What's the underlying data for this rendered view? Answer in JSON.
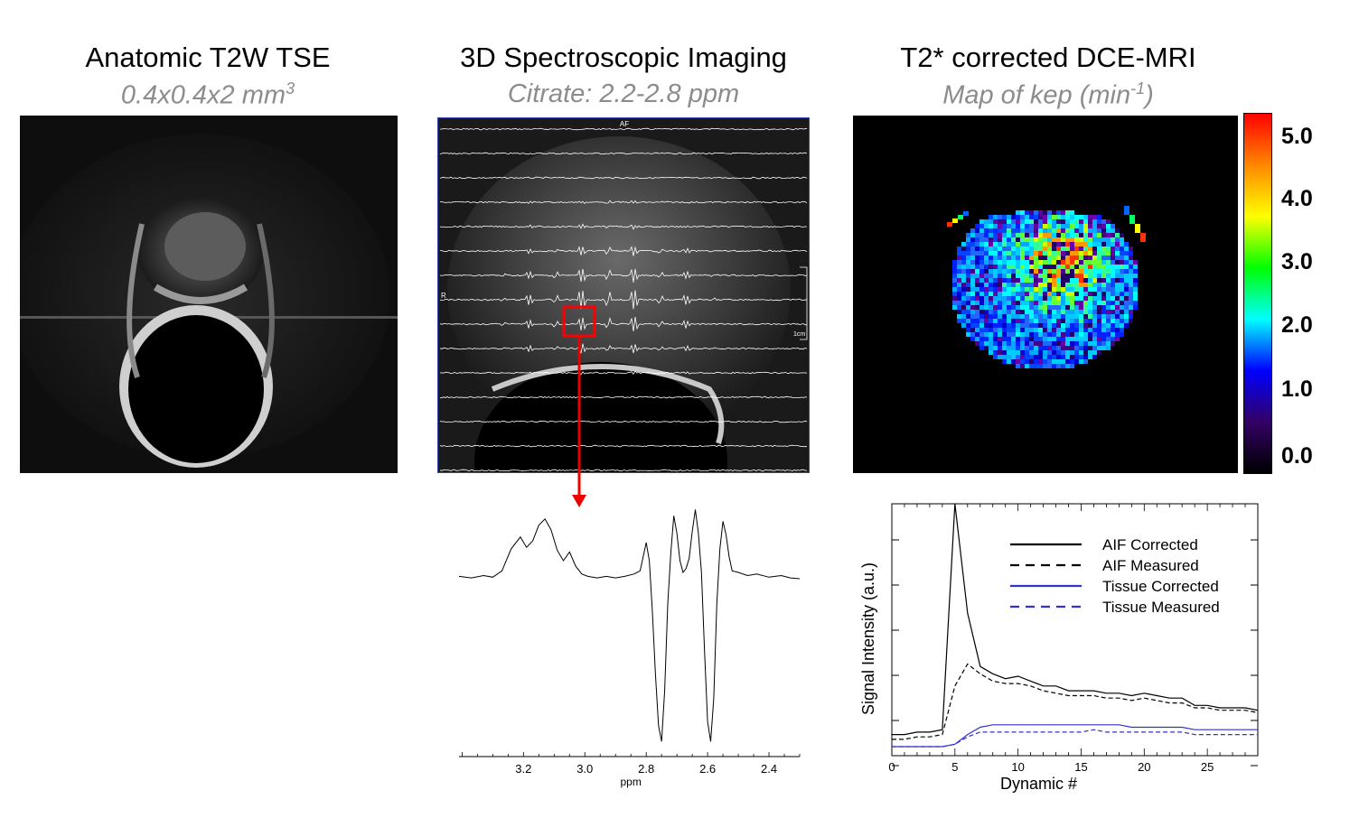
{
  "panels": [
    {
      "title": "Anatomic  T2W TSE",
      "subtitle_base": "0.4x0.4x2 mm",
      "subtitle_sup": "3"
    },
    {
      "title": "3D Spectroscopic  Imaging",
      "subtitle_base": "Citrate:  2.2-2.8  ppm",
      "subtitle_sup": ""
    },
    {
      "title": "T2* corrected  DCE-MRI",
      "subtitle_base": "Map of kep (min",
      "subtitle_sup": "-1",
      "subtitle_tail": ")"
    }
  ],
  "mrsi_overlay": {
    "top_label": "AF",
    "left_label": "R",
    "scale_label": "1cm"
  },
  "colorbar": {
    "ticks": [
      "5.0",
      "4.0",
      "3.0",
      "2.0",
      "1.0",
      "0.0"
    ],
    "colors": [
      "#ff0000",
      "#ff8800",
      "#ffff00",
      "#00ff00",
      "#00ffff",
      "#0000ff",
      "#330066",
      "#000000"
    ]
  },
  "chart_data": [
    {
      "type": "line",
      "xlabel": "ppm",
      "ticks": [
        "3.2",
        "3.0",
        "2.8",
        "2.6",
        "2.4"
      ],
      "xlim": [
        3.41,
        2.3
      ],
      "series": [
        {
          "x": [
            3.41,
            3.37,
            3.33,
            3.3,
            3.27,
            3.24,
            3.21,
            3.19,
            3.17,
            3.15,
            3.13,
            3.11,
            3.09,
            3.07,
            3.05,
            3.03,
            3.01,
            2.99,
            2.96,
            2.93,
            2.9,
            2.87,
            2.84,
            2.82,
            2.81,
            2.8,
            2.79,
            2.78,
            2.77,
            2.76,
            2.75,
            2.74,
            2.73,
            2.72,
            2.71,
            2.7,
            2.69,
            2.68,
            2.67,
            2.66,
            2.65,
            2.64,
            2.63,
            2.62,
            2.61,
            2.6,
            2.59,
            2.58,
            2.57,
            2.56,
            2.55,
            2.54,
            2.53,
            2.52,
            2.5,
            2.47,
            2.44,
            2.4,
            2.36,
            2.33,
            2.3
          ],
          "y": [
            0.05,
            0.03,
            0.06,
            0.04,
            0.12,
            0.4,
            0.55,
            0.42,
            0.5,
            0.7,
            0.78,
            0.64,
            0.38,
            0.25,
            0.36,
            0.18,
            0.08,
            0.05,
            0.03,
            0.05,
            0.03,
            0.05,
            0.08,
            0.12,
            0.3,
            0.48,
            0.25,
            -0.4,
            -1.2,
            -1.85,
            -2.05,
            -1.4,
            -0.3,
            0.35,
            0.82,
            0.6,
            0.25,
            0.1,
            0.15,
            0.28,
            0.62,
            0.9,
            0.6,
            0.1,
            -0.9,
            -1.8,
            -2.05,
            -1.5,
            -0.3,
            0.4,
            0.75,
            0.58,
            0.3,
            0.12,
            0.1,
            0.06,
            0.08,
            0.04,
            0.06,
            0.03,
            0.02
          ]
        }
      ]
    },
    {
      "type": "line",
      "xlabel": "Dynamic #",
      "ylabel": "Signal Intensity (a.u.)",
      "xlim": [
        0,
        29
      ],
      "ylim": [
        0,
        1
      ],
      "xticks": [
        0,
        5,
        10,
        15,
        20,
        25
      ],
      "series": [
        {
          "name": "AIF Corrected",
          "color": "#000000",
          "dash": "solid",
          "x": [
            0,
            1,
            2,
            3,
            4,
            5,
            6,
            7,
            8,
            9,
            10,
            11,
            12,
            13,
            14,
            15,
            16,
            17,
            18,
            19,
            20,
            21,
            22,
            23,
            24,
            25,
            26,
            27,
            28,
            29
          ],
          "y": [
            0.05,
            0.05,
            0.06,
            0.06,
            0.07,
            1.0,
            0.55,
            0.33,
            0.3,
            0.28,
            0.29,
            0.27,
            0.25,
            0.25,
            0.23,
            0.23,
            0.23,
            0.22,
            0.22,
            0.21,
            0.22,
            0.21,
            0.2,
            0.2,
            0.17,
            0.17,
            0.16,
            0.16,
            0.16,
            0.15
          ]
        },
        {
          "name": "AIF Measured",
          "color": "#000000",
          "dash": "dashed",
          "x": [
            0,
            1,
            2,
            3,
            4,
            5,
            6,
            7,
            8,
            9,
            10,
            11,
            12,
            13,
            14,
            15,
            16,
            17,
            18,
            19,
            20,
            21,
            22,
            23,
            24,
            25,
            26,
            27,
            28,
            29
          ],
          "y": [
            0.03,
            0.03,
            0.04,
            0.04,
            0.05,
            0.25,
            0.34,
            0.3,
            0.27,
            0.26,
            0.26,
            0.25,
            0.23,
            0.22,
            0.21,
            0.21,
            0.21,
            0.2,
            0.2,
            0.19,
            0.2,
            0.19,
            0.18,
            0.18,
            0.16,
            0.16,
            0.15,
            0.15,
            0.15,
            0.14
          ]
        },
        {
          "name": "Tissue Corrected",
          "color": "#3333cc",
          "dash": "solid",
          "x": [
            0,
            1,
            2,
            3,
            4,
            5,
            6,
            7,
            8,
            9,
            10,
            11,
            12,
            13,
            14,
            15,
            16,
            17,
            18,
            19,
            20,
            21,
            22,
            23,
            24,
            25,
            26,
            27,
            28,
            29
          ],
          "y": [
            0.0,
            0.0,
            0.0,
            0.0,
            0.0,
            0.01,
            0.05,
            0.08,
            0.09,
            0.09,
            0.09,
            0.09,
            0.09,
            0.09,
            0.09,
            0.09,
            0.09,
            0.09,
            0.09,
            0.08,
            0.08,
            0.08,
            0.08,
            0.08,
            0.07,
            0.07,
            0.07,
            0.07,
            0.07,
            0.07
          ]
        },
        {
          "name": "Tissue Measured",
          "color": "#3333cc",
          "dash": "dashed",
          "x": [
            0,
            1,
            2,
            3,
            4,
            5,
            6,
            7,
            8,
            9,
            10,
            11,
            12,
            13,
            14,
            15,
            16,
            17,
            18,
            19,
            20,
            21,
            22,
            23,
            24,
            25,
            26,
            27,
            28,
            29
          ],
          "y": [
            0.0,
            0.0,
            0.0,
            0.0,
            0.0,
            0.01,
            0.04,
            0.06,
            0.06,
            0.06,
            0.06,
            0.06,
            0.06,
            0.06,
            0.06,
            0.06,
            0.07,
            0.06,
            0.06,
            0.06,
            0.06,
            0.06,
            0.06,
            0.06,
            0.05,
            0.05,
            0.05,
            0.05,
            0.05,
            0.05
          ]
        }
      ]
    }
  ]
}
